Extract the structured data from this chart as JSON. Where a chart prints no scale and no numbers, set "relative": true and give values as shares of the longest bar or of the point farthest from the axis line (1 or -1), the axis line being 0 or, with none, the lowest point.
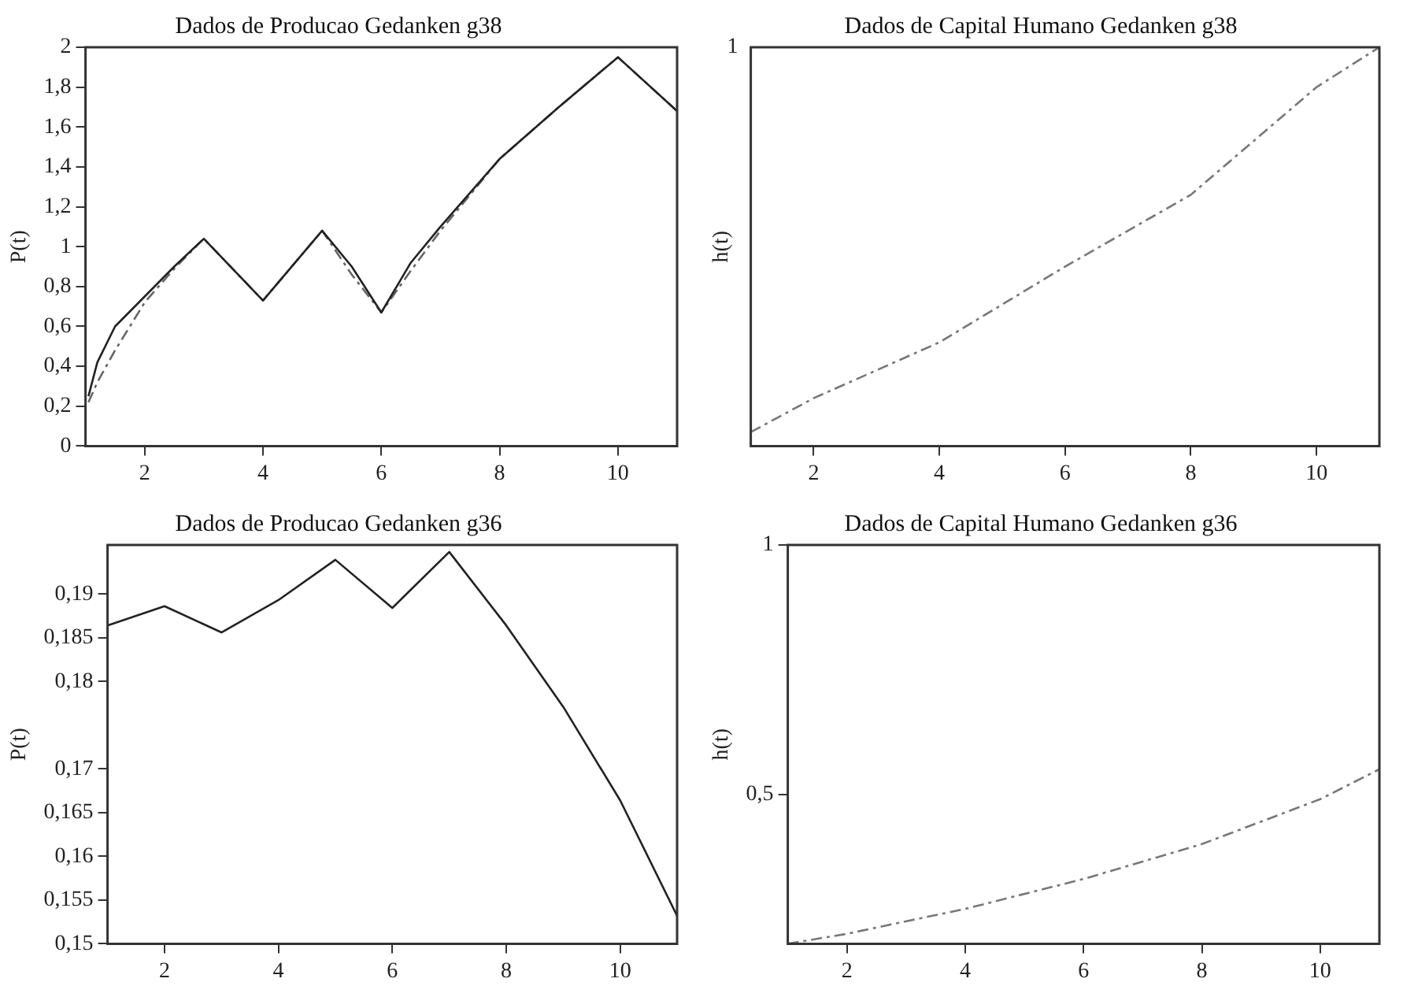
{
  "chart_data": [
    {
      "type": "line",
      "title": "Dados de Producao Gedanken g38",
      "ylabel": "P(t)",
      "xlim": [
        1,
        11
      ],
      "xticks": [
        2,
        4,
        6,
        8,
        10
      ],
      "ylim": [
        0,
        2
      ],
      "yticks": [
        0,
        {
          "value": 0.2,
          "label": "0,2"
        },
        {
          "value": 0.4,
          "label": "0,4"
        },
        {
          "value": 0.6,
          "label": "0,6"
        },
        {
          "value": 0.8,
          "label": "0,8"
        },
        1,
        {
          "value": 1.2,
          "label": "1,2"
        },
        {
          "value": 1.4,
          "label": "1,4"
        },
        {
          "value": 1.6,
          "label": "1,6"
        },
        {
          "value": 1.8,
          "label": "1,8"
        },
        2
      ],
      "grid": false,
      "legend": false,
      "series": [
        {
          "color": "#222222",
          "line_style": "solid",
          "x": [
            1.05,
            1.2,
            1.5,
            2,
            2.5,
            3,
            4,
            5,
            5.5,
            6,
            6.5,
            7,
            8,
            9,
            10,
            11
          ],
          "values": [
            0.25,
            0.42,
            0.6,
            0.75,
            0.9,
            1.04,
            0.73,
            1.08,
            0.9,
            0.67,
            0.92,
            1.1,
            1.44,
            1.7,
            1.95,
            1.68
          ]
        },
        {
          "color": "#666666",
          "line_style": "dashed",
          "x": [
            1.05,
            1.2,
            1.5,
            2,
            2.5,
            3,
            4,
            5,
            5.5,
            6,
            6.5,
            7,
            8,
            9,
            10,
            11
          ],
          "values": [
            0.22,
            0.32,
            0.48,
            0.72,
            0.89,
            1.04,
            0.73,
            1.08,
            0.86,
            0.67,
            0.88,
            1.08,
            1.44,
            1.7,
            1.95,
            1.68
          ]
        }
      ]
    },
    {
      "type": "line",
      "title": "Dados de Capital Humano Gedanken g38",
      "ylabel": "h(t)",
      "xlim": [
        1,
        11
      ],
      "xticks": [
        2,
        4,
        6,
        8,
        10
      ],
      "relative": true,
      "annotations": [
        "1"
      ],
      "grid": false,
      "legend": false,
      "series": [
        {
          "color": "#777777",
          "line_style": "dashed",
          "x": [
            1,
            2,
            4,
            6,
            8,
            10,
            11
          ],
          "values": [
            0.035,
            0.12,
            0.26,
            0.45,
            0.63,
            0.9,
            1
          ]
        }
      ]
    },
    {
      "type": "line",
      "title": "Dados de Producao Gedanken g36",
      "ylabel": "P(t)",
      "xlim": [
        1,
        11
      ],
      "xticks": [
        2,
        4,
        6,
        8,
        10
      ],
      "ylim": [
        0.15,
        0.1956
      ],
      "yticks": [
        {
          "value": 0.15,
          "label": "0,15"
        },
        {
          "value": 0.155,
          "label": "0,155"
        },
        {
          "value": 0.16,
          "label": "0,16"
        },
        {
          "value": 0.165,
          "label": "0,165"
        },
        {
          "value": 0.17,
          "label": "0,17"
        },
        {
          "value": 0.18,
          "label": "0,18"
        },
        {
          "value": 0.185,
          "label": "0,185"
        },
        {
          "value": 0.19,
          "label": "0,19"
        }
      ],
      "grid": false,
      "legend": false,
      "series": [
        {
          "color": "#222222",
          "line_style": "solid",
          "x": [
            1,
            2,
            3,
            4,
            5,
            6,
            7,
            8,
            9,
            10,
            11
          ],
          "values": [
            0.1864,
            0.1886,
            0.1856,
            0.1893,
            0.1939,
            0.1884,
            0.1948,
            0.1864,
            0.1771,
            0.1664,
            0.1532
          ]
        }
      ]
    },
    {
      "type": "line",
      "title": "Dados de Capital Humano Gedanken g36",
      "ylabel": "h(t)",
      "xlim": [
        1,
        11
      ],
      "xticks": [
        2,
        4,
        6,
        8,
        10
      ],
      "ylim": [
        0.2,
        1
      ],
      "yticks": [
        {
          "value": 0.5,
          "label": "0,5"
        },
        1
      ],
      "grid": false,
      "legend": false,
      "series": [
        {
          "color": "#777777",
          "line_style": "dashed",
          "x": [
            1,
            2,
            4,
            6,
            8,
            10,
            11
          ],
          "values": [
            0.2,
            0.22,
            0.27,
            0.33,
            0.4,
            0.49,
            0.55
          ]
        }
      ]
    }
  ]
}
